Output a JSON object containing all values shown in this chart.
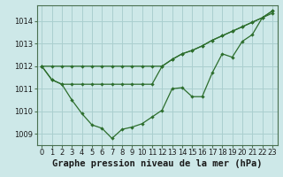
{
  "title": "Graphe pression niveau de la mer (hPa)",
  "bg_color": "#cde8e8",
  "grid_color": "#aacfcf",
  "line_color": "#2d6e2d",
  "x_labels": [
    "0",
    "1",
    "2",
    "3",
    "4",
    "5",
    "6",
    "7",
    "8",
    "9",
    "10",
    "11",
    "12",
    "13",
    "14",
    "15",
    "16",
    "17",
    "18",
    "19",
    "20",
    "21",
    "22",
    "23"
  ],
  "line1": [
    1012.0,
    1012.0,
    1012.0,
    1012.0,
    1012.0,
    1012.0,
    1012.0,
    1012.0,
    1012.0,
    1012.0,
    1012.0,
    1012.0,
    1012.0,
    1012.3,
    1012.55,
    1012.7,
    1012.9,
    1013.15,
    1013.35,
    1013.55,
    1013.75,
    1013.95,
    1014.15,
    1014.35
  ],
  "line2": [
    1012.0,
    1011.4,
    1011.2,
    1011.2,
    1011.2,
    1011.2,
    1011.2,
    1011.2,
    1011.2,
    1011.2,
    1011.2,
    1011.2,
    1012.0,
    1012.3,
    1012.55,
    1012.7,
    1012.9,
    1013.15,
    1013.35,
    1013.55,
    1013.75,
    1013.95,
    1014.15,
    1014.45
  ],
  "line3": [
    1012.0,
    1011.4,
    1011.2,
    1010.5,
    1009.9,
    1009.4,
    1009.25,
    1008.8,
    1009.2,
    1009.3,
    1009.45,
    1009.75,
    1010.05,
    1011.0,
    1011.05,
    1010.65,
    1010.65,
    1011.7,
    1012.55,
    1012.4,
    1013.1,
    1013.4,
    1014.15,
    1014.45
  ],
  "ylim": [
    1008.5,
    1014.7
  ],
  "yticks": [
    1009,
    1010,
    1011,
    1012,
    1013,
    1014
  ],
  "title_fontsize": 7.5,
  "tick_fontsize": 6
}
